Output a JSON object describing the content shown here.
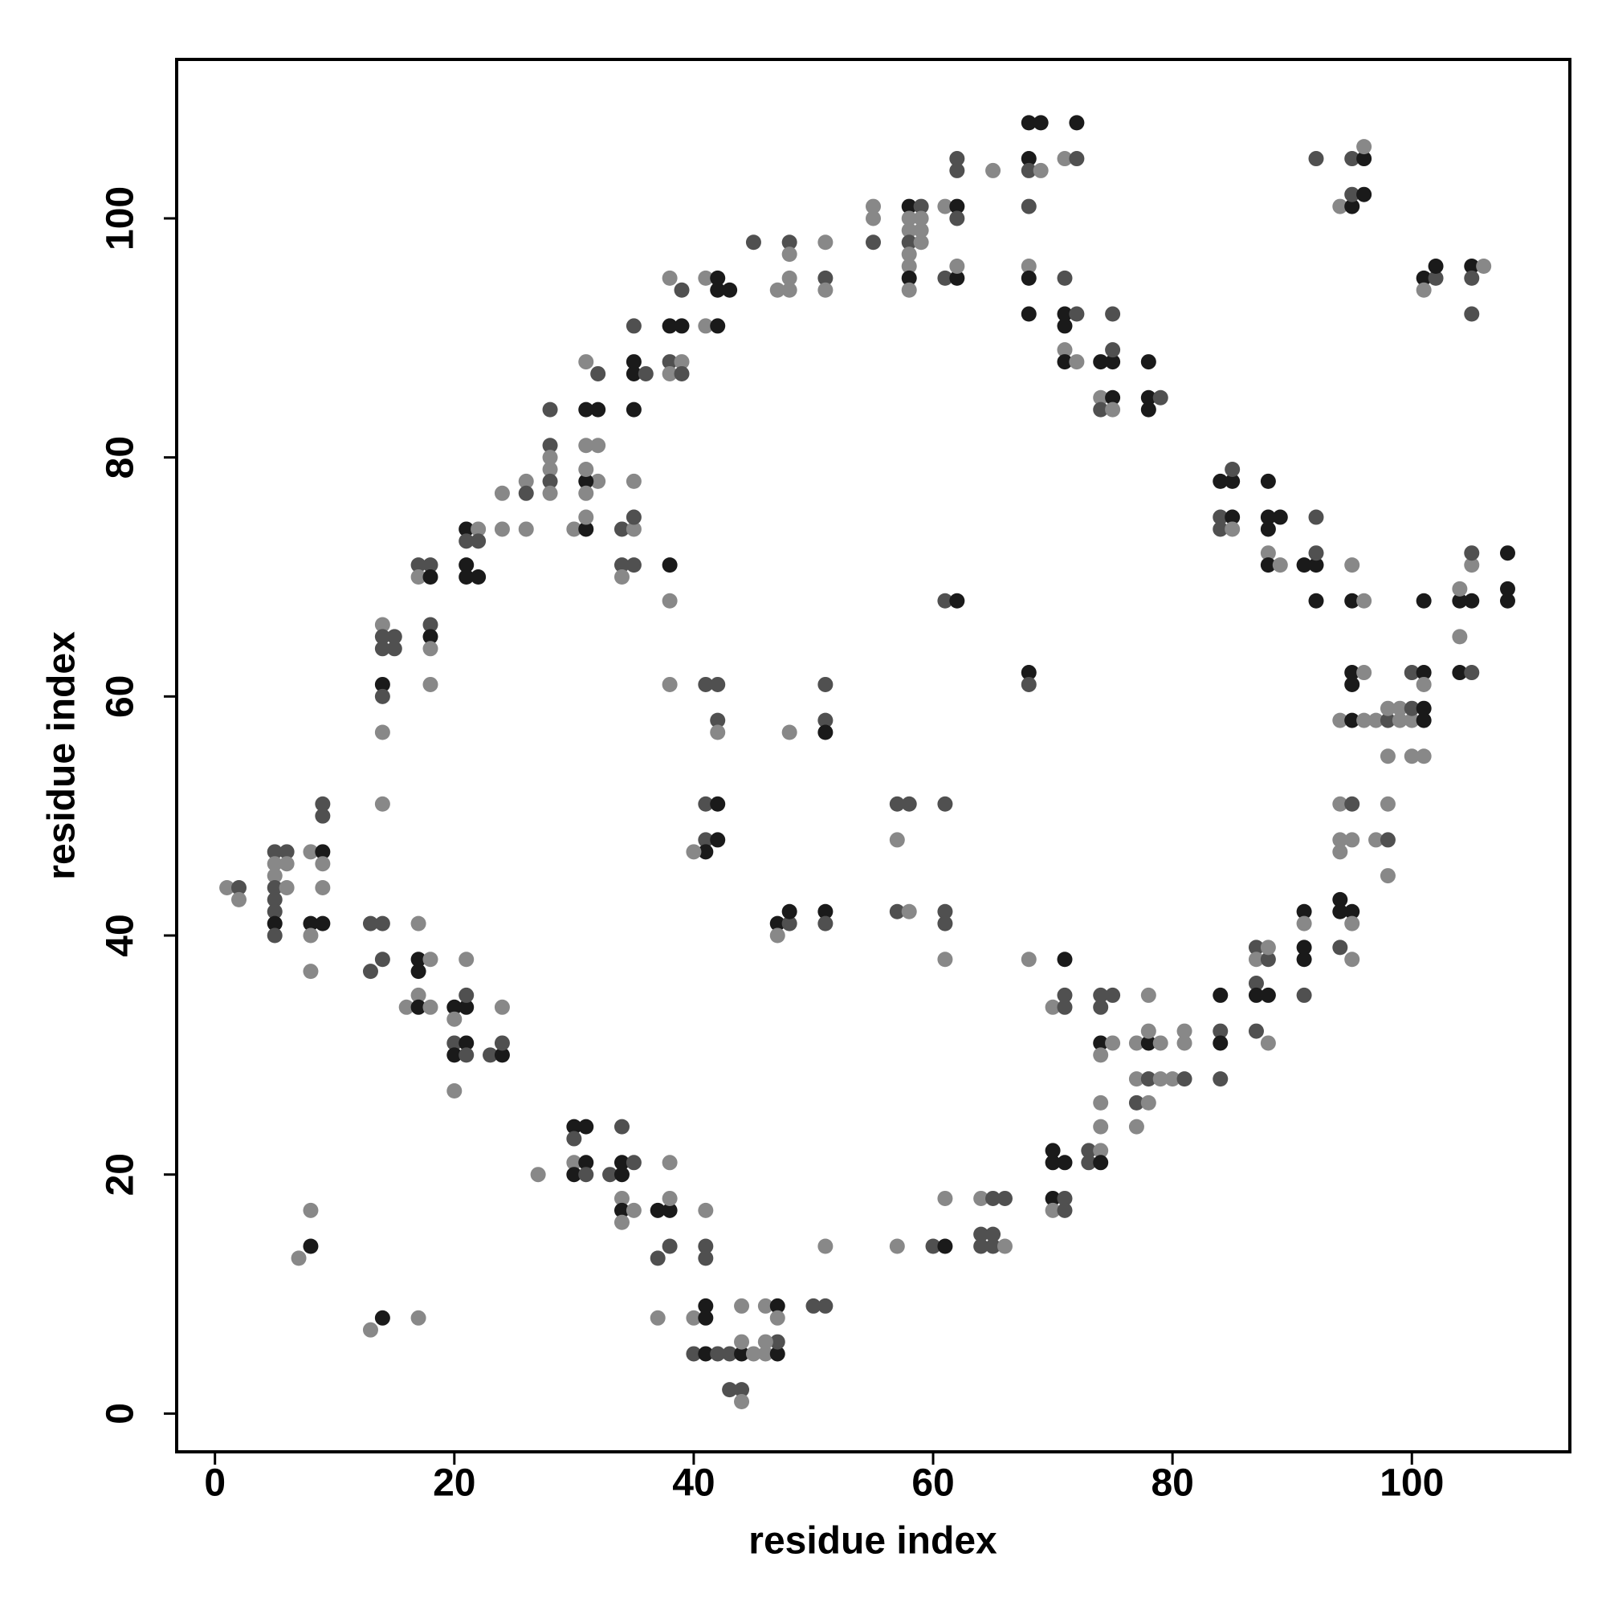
{
  "chart_data": {
    "type": "scatter",
    "x_label": "residue index",
    "y_label": "residue index",
    "xlim": [
      -3.2,
      113.2
    ],
    "ylim": [
      -3.2,
      113.3
    ],
    "xticks": [
      0,
      20,
      40,
      60,
      80,
      100
    ],
    "yticks": [
      0,
      20,
      40,
      60,
      80,
      100
    ],
    "x": [
      1,
      2,
      2,
      5,
      6,
      5,
      6,
      5,
      5,
      6,
      5,
      5,
      5,
      5,
      8,
      9,
      9,
      9,
      8,
      9,
      8,
      8,
      9,
      9,
      13,
      14,
      13,
      14,
      17,
      17,
      17,
      18,
      17,
      16,
      17,
      18,
      20,
      21,
      21,
      20,
      21,
      20,
      21,
      20,
      21,
      23,
      24,
      24,
      24,
      20,
      8,
      8,
      7,
      14,
      13,
      17,
      27,
      30,
      31,
      30,
      30,
      31,
      30,
      31,
      33,
      34,
      34,
      35,
      34,
      34,
      34,
      35,
      34,
      37,
      38,
      38,
      38,
      38,
      37,
      37,
      41,
      41,
      41,
      41,
      40,
      41,
      40,
      41,
      42,
      43,
      44,
      45,
      46,
      47,
      47,
      46,
      44,
      44,
      46,
      47,
      47,
      43,
      44,
      44,
      50,
      51,
      51,
      57,
      60,
      61,
      61,
      64,
      65,
      66,
      64,
      65,
      64,
      65,
      66,
      70,
      70,
      71,
      70,
      71,
      70,
      71,
      73,
      74,
      73,
      74,
      74,
      74,
      70,
      71,
      71,
      71,
      74,
      75,
      74,
      74,
      75,
      74,
      77,
      78,
      79,
      78,
      77,
      78,
      79,
      80,
      81,
      77,
      78,
      77,
      78,
      81,
      81,
      84,
      84,
      84,
      84,
      87,
      87,
      88,
      88,
      87,
      87,
      88,
      87,
      88,
      91,
      91,
      91,
      91,
      91,
      94,
      94,
      95,
      95,
      94,
      95,
      94,
      95,
      94,
      95,
      94,
      97,
      98,
      98,
      98,
      94,
      95,
      96,
      97,
      98,
      99,
      100,
      101,
      98,
      99,
      100,
      101,
      98,
      100,
      101,
      95,
      96,
      95,
      100,
      101,
      101,
      95,
      96,
      95,
      92,
      101,
      104,
      105,
      104,
      105,
      105,
      104,
      104,
      105,
      108,
      108,
      108,
      84,
      85,
      85,
      84,
      85,
      84,
      85,
      88,
      88,
      89,
      88,
      88,
      88,
      89,
      91,
      92,
      92,
      92,
      92,
      94,
      95,
      95,
      96,
      95,
      96,
      96,
      101,
      102,
      102,
      101,
      105,
      106,
      105,
      105,
      68,
      69,
      72,
      68,
      68,
      69,
      71,
      72,
      68,
      61,
      62,
      62,
      62,
      62,
      65,
      58,
      59,
      58,
      59,
      58,
      59,
      58,
      59,
      58,
      58,
      58,
      58,
      55,
      55,
      55,
      61,
      62,
      62,
      68,
      68,
      68,
      71,
      71,
      72,
      71,
      71,
      71,
      72,
      74,
      75,
      75,
      75,
      74,
      75,
      74,
      75,
      78,
      79,
      78,
      78,
      45,
      48,
      48,
      51,
      47,
      48,
      48,
      51,
      51,
      41,
      42,
      42,
      43,
      41,
      42,
      38,
      38,
      39,
      39,
      38,
      39,
      38,
      39,
      35,
      35,
      35,
      36,
      35,
      31,
      32,
      31,
      32,
      31,
      32,
      32,
      31,
      31,
      31,
      28,
      28,
      28,
      28,
      28,
      28,
      26,
      26,
      24,
      30,
      31,
      31,
      34,
      35,
      35,
      35,
      34,
      35,
      34,
      38,
      38,
      21,
      22,
      21,
      22,
      24,
      26,
      21,
      21,
      22,
      17,
      18,
      17,
      18,
      14,
      14,
      15,
      14,
      15,
      18,
      18,
      18,
      14,
      14,
      14,
      14,
      18,
      38,
      41,
      42,
      42,
      42,
      41,
      42,
      41,
      42,
      41,
      40,
      48,
      51,
      51,
      51,
      47,
      48,
      48,
      47,
      51,
      51,
      57,
      58,
      57,
      57,
      58,
      61,
      61,
      61,
      61,
      61,
      62,
      68,
      68,
      68
    ],
    "values": [
      44,
      44,
      43,
      47,
      47,
      46,
      46,
      45,
      44,
      44,
      43,
      42,
      41,
      40,
      47,
      47,
      46,
      44,
      41,
      41,
      40,
      37,
      51,
      50,
      41,
      41,
      37,
      38,
      41,
      38,
      37,
      38,
      35,
      34,
      34,
      34,
      34,
      34,
      35,
      33,
      38,
      31,
      31,
      30,
      30,
      30,
      30,
      31,
      34,
      27,
      17,
      14,
      13,
      8,
      7,
      8,
      20,
      24,
      24,
      23,
      21,
      21,
      20,
      20,
      20,
      20,
      21,
      21,
      24,
      18,
      17,
      17,
      16,
      17,
      17,
      18,
      21,
      14,
      13,
      8,
      17,
      14,
      13,
      9,
      8,
      8,
      5,
      5,
      5,
      5,
      5,
      5,
      5,
      5,
      6,
      6,
      6,
      9,
      9,
      9,
      8,
      2,
      2,
      1,
      9,
      9,
      14,
      14,
      14,
      14,
      18,
      18,
      18,
      18,
      15,
      15,
      14,
      14,
      14,
      22,
      21,
      21,
      18,
      18,
      17,
      17,
      22,
      22,
      21,
      21,
      24,
      26,
      34,
      34,
      35,
      38,
      35,
      35,
      34,
      31,
      31,
      30,
      31,
      31,
      31,
      32,
      28,
      28,
      28,
      28,
      28,
      26,
      26,
      24,
      35,
      32,
      31,
      35,
      32,
      31,
      28,
      39,
      38,
      38,
      39,
      36,
      35,
      35,
      32,
      31,
      42,
      41,
      39,
      38,
      35,
      43,
      42,
      42,
      41,
      39,
      38,
      51,
      51,
      48,
      48,
      47,
      48,
      48,
      51,
      45,
      58,
      58,
      58,
      58,
      58,
      58,
      58,
      58,
      59,
      59,
      59,
      59,
      55,
      55,
      55,
      62,
      62,
      61,
      62,
      62,
      61,
      68,
      68,
      71,
      68,
      68,
      68,
      68,
      69,
      71,
      72,
      65,
      62,
      62,
      72,
      69,
      68,
      78,
      78,
      79,
      75,
      75,
      74,
      74,
      78,
      75,
      75,
      74,
      72,
      71,
      71,
      71,
      71,
      72,
      75,
      105,
      101,
      101,
      102,
      102,
      105,
      105,
      106,
      95,
      95,
      96,
      94,
      96,
      96,
      95,
      92,
      108,
      108,
      108,
      105,
      104,
      104,
      105,
      105,
      101,
      101,
      101,
      100,
      104,
      105,
      104,
      101,
      101,
      100,
      100,
      99,
      99,
      98,
      98,
      97,
      96,
      95,
      94,
      101,
      100,
      98,
      95,
      95,
      96,
      96,
      95,
      92,
      95,
      92,
      92,
      91,
      89,
      88,
      88,
      88,
      88,
      89,
      92,
      85,
      85,
      84,
      84,
      85,
      85,
      84,
      88,
      98,
      98,
      97,
      98,
      94,
      94,
      95,
      95,
      94,
      95,
      95,
      94,
      94,
      91,
      91,
      95,
      91,
      91,
      94,
      88,
      88,
      87,
      87,
      91,
      88,
      87,
      87,
      84,
      88,
      87,
      84,
      84,
      81,
      81,
      78,
      78,
      77,
      79,
      84,
      81,
      80,
      79,
      78,
      77,
      78,
      77,
      77,
      74,
      74,
      75,
      74,
      74,
      75,
      78,
      71,
      71,
      70,
      71,
      68,
      74,
      74,
      73,
      73,
      74,
      74,
      71,
      70,
      70,
      71,
      71,
      70,
      70,
      66,
      65,
      65,
      64,
      64,
      66,
      65,
      64,
      61,
      60,
      57,
      51,
      61,
      61,
      61,
      61,
      58,
      57,
      51,
      51,
      48,
      48,
      47,
      47,
      57,
      61,
      58,
      57,
      41,
      41,
      42,
      40,
      42,
      41,
      51,
      51,
      48,
      42,
      42,
      51,
      42,
      41,
      38,
      68,
      68,
      62,
      61,
      38
    ],
    "colors": [
      "#888888",
      "#505050",
      "#888888",
      "#505050",
      "#505050",
      "#888888",
      "#888888",
      "#888888",
      "#505050",
      "#888888",
      "#505050",
      "#505050",
      "#1a1a1a",
      "#505050",
      "#888888",
      "#1a1a1a",
      "#888888",
      "#888888",
      "#1a1a1a",
      "#1a1a1a",
      "#888888",
      "#888888",
      "#505050",
      "#505050",
      "#505050",
      "#505050",
      "#505050",
      "#505050",
      "#888888",
      "#1a1a1a",
      "#1a1a1a",
      "#888888",
      "#888888",
      "#888888",
      "#1a1a1a",
      "#888888",
      "#1a1a1a",
      "#1a1a1a",
      "#505050",
      "#888888",
      "#888888",
      "#505050",
      "#1a1a1a",
      "#1a1a1a",
      "#505050",
      "#505050",
      "#1a1a1a",
      "#505050",
      "#888888",
      "#888888",
      "#888888",
      "#1a1a1a",
      "#888888",
      "#1a1a1a",
      "#888888",
      "#888888",
      "#888888",
      "#1a1a1a",
      "#1a1a1a",
      "#505050",
      "#888888",
      "#1a1a1a",
      "#1a1a1a",
      "#505050",
      "#505050",
      "#1a1a1a",
      "#1a1a1a",
      "#505050",
      "#505050",
      "#888888",
      "#1a1a1a",
      "#888888",
      "#888888",
      "#1a1a1a",
      "#1a1a1a",
      "#888888",
      "#888888",
      "#505050",
      "#505050",
      "#888888",
      "#888888",
      "#505050",
      "#505050",
      "#1a1a1a",
      "#888888",
      "#1a1a1a",
      "#505050",
      "#1a1a1a",
      "#505050",
      "#505050",
      "#1a1a1a",
      "#888888",
      "#888888",
      "#1a1a1a",
      "#505050",
      "#888888",
      "#888888",
      "#888888",
      "#888888",
      "#1a1a1a",
      "#888888",
      "#505050",
      "#505050",
      "#888888",
      "#505050",
      "#505050",
      "#888888",
      "#888888",
      "#505050",
      "#1a1a1a",
      "#888888",
      "#888888",
      "#505050",
      "#505050",
      "#505050",
      "#505050",
      "#505050",
      "#505050",
      "#888888",
      "#1a1a1a",
      "#1a1a1a",
      "#1a1a1a",
      "#1a1a1a",
      "#505050",
      "#888888",
      "#505050",
      "#505050",
      "#888888",
      "#505050",
      "#1a1a1a",
      "#888888",
      "#888888",
      "#888888",
      "#505050",
      "#505050",
      "#1a1a1a",
      "#505050",
      "#505050",
      "#505050",
      "#1a1a1a",
      "#888888",
      "#888888",
      "#888888",
      "#1a1a1a",
      "#888888",
      "#888888",
      "#888888",
      "#505050",
      "#888888",
      "#888888",
      "#505050",
      "#505050",
      "#888888",
      "#888888",
      "#888888",
      "#888888",
      "#888888",
      "#1a1a1a",
      "#505050",
      "#1a1a1a",
      "#505050",
      "#505050",
      "#888888",
      "#505050",
      "#888888",
      "#505050",
      "#1a1a1a",
      "#1a1a1a",
      "#505050",
      "#888888",
      "#1a1a1a",
      "#888888",
      "#1a1a1a",
      "#1a1a1a",
      "#505050",
      "#1a1a1a",
      "#1a1a1a",
      "#1a1a1a",
      "#888888",
      "#505050",
      "#888888",
      "#888888",
      "#505050",
      "#888888",
      "#888888",
      "#888888",
      "#888888",
      "#505050",
      "#888888",
      "#888888",
      "#888888",
      "#1a1a1a",
      "#888888",
      "#888888",
      "#505050",
      "#888888",
      "#888888",
      "#1a1a1a",
      "#888888",
      "#888888",
      "#505050",
      "#1a1a1a",
      "#888888",
      "#888888",
      "#888888",
      "#1a1a1a",
      "#888888",
      "#1a1a1a",
      "#505050",
      "#1a1a1a",
      "#888888",
      "#1a1a1a",
      "#888888",
      "#888888",
      "#1a1a1a",
      "#1a1a1a",
      "#1a1a1a",
      "#1a1a1a",
      "#888888",
      "#888888",
      "#505050",
      "#888888",
      "#1a1a1a",
      "#505050",
      "#1a1a1a",
      "#1a1a1a",
      "#1a1a1a",
      "#1a1a1a",
      "#1a1a1a",
      "#505050",
      "#505050",
      "#1a1a1a",
      "#505050",
      "#888888",
      "#1a1a1a",
      "#1a1a1a",
      "#1a1a1a",
      "#1a1a1a",
      "#888888",
      "#1a1a1a",
      "#888888",
      "#1a1a1a",
      "#1a1a1a",
      "#505050",
      "#505050",
      "#505050",
      "#888888",
      "#1a1a1a",
      "#505050",
      "#1a1a1a",
      "#505050",
      "#1a1a1a",
      "#888888",
      "#1a1a1a",
      "#505050",
      "#1a1a1a",
      "#888888",
      "#1a1a1a",
      "#888888",
      "#505050",
      "#505050",
      "#1a1a1a",
      "#1a1a1a",
      "#1a1a1a",
      "#1a1a1a",
      "#505050",
      "#888888",
      "#888888",
      "#505050",
      "#505050",
      "#888888",
      "#1a1a1a",
      "#505050",
      "#505050",
      "#505050",
      "#888888",
      "#1a1a1a",
      "#505050",
      "#888888",
      "#888888",
      "#888888",
      "#888888",
      "#505050",
      "#888888",
      "#888888",
      "#888888",
      "#1a1a1a",
      "#888888",
      "#888888",
      "#888888",
      "#505050",
      "#505050",
      "#1a1a1a",
      "#888888",
      "#888888",
      "#1a1a1a",
      "#1a1a1a",
      "#505050",
      "#1a1a1a",
      "#505050",
      "#1a1a1a",
      "#888888",
      "#1a1a1a",
      "#888888",
      "#1a1a1a",
      "#1a1a1a",
      "#505050",
      "#505050",
      "#888888",
      "#1a1a1a",
      "#505050",
      "#888888",
      "#1a1a1a",
      "#505050",
      "#1a1a1a",
      "#1a1a1a",
      "#505050",
      "#505050",
      "#888888",
      "#888888",
      "#888888",
      "#888888",
      "#888888",
      "#505050",
      "#888888",
      "#888888",
      "#1a1a1a",
      "#1a1a1a",
      "#1a1a1a",
      "#888888",
      "#1a1a1a",
      "#888888",
      "#1a1a1a",
      "#1a1a1a",
      "#505050",
      "#505050",
      "#888888",
      "#888888",
      "#505050",
      "#505050",
      "#1a1a1a",
      "#1a1a1a",
      "#505050",
      "#1a1a1a",
      "#888888",
      "#505050",
      "#1a1a1a",
      "#1a1a1a",
      "#888888",
      "#888888",
      "#888888",
      "#1a1a1a",
      "#888888",
      "#888888",
      "#505050",
      "#505050",
      "#888888",
      "#888888",
      "#505050",
      "#888888",
      "#888888",
      "#505050",
      "#888888",
      "#888888",
      "#1a1a1a",
      "#888888",
      "#505050",
      "#888888",
      "#505050",
      "#888888",
      "#505050",
      "#505050",
      "#888888",
      "#1a1a1a",
      "#888888",
      "#1a1a1a",
      "#888888",
      "#505050",
      "#505050",
      "#888888",
      "#888888",
      "#1a1a1a",
      "#1a1a1a",
      "#1a1a1a",
      "#505050",
      "#505050",
      "#888888",
      "#1a1a1a",
      "#888888",
      "#505050",
      "#505050",
      "#505050",
      "#505050",
      "#505050",
      "#1a1a1a",
      "#888888",
      "#1a1a1a",
      "#505050",
      "#888888",
      "#888888",
      "#888888",
      "#888888",
      "#505050",
      "#505050",
      "#505050",
      "#888888",
      "#505050",
      "#1a1a1a",
      "#505050",
      "#1a1a1a",
      "#1a1a1a",
      "#888888",
      "#888888",
      "#505050",
      "#505050",
      "#1a1a1a",
      "#1a1a1a",
      "#505050",
      "#1a1a1a",
      "#888888",
      "#1a1a1a",
      "#505050",
      "#505050",
      "#505050",
      "#888888",
      "#505050",
      "#888888",
      "#505050",
      "#505050",
      "#505050",
      "#888888",
      "#505050",
      "#1a1a1a",
      "#1a1a1a",
      "#505050",
      "#888888"
    ]
  }
}
